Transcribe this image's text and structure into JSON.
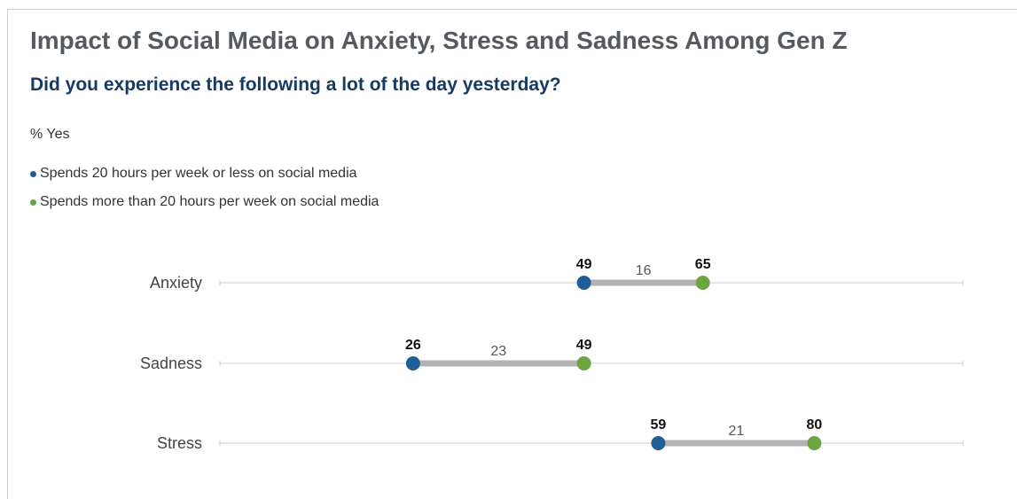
{
  "chart_data": {
    "type": "dumbbell",
    "title": "Impact of Social Media on Anxiety, Stress and Sadness Among Gen Z",
    "subtitle": "Did you experience the following a lot of the day yesterday?",
    "unit_label": "% Yes",
    "xlim": [
      0,
      100
    ],
    "categories": [
      "Anxiety",
      "Sadness",
      "Stress"
    ],
    "series": [
      {
        "name": "Spends 20 hours per week or less on social media",
        "color": "#1f5f99",
        "values": [
          49,
          26,
          59
        ]
      },
      {
        "name": "Spends more than 20 hours per week on social media",
        "color": "#6ca43f",
        "values": [
          65,
          49,
          80
        ]
      }
    ],
    "differences": [
      "16",
      "23",
      "21"
    ],
    "colors": {
      "connector": "#b3b3b3",
      "axis": "#cccccc"
    },
    "grid": false,
    "legend_position": "top-left"
  }
}
